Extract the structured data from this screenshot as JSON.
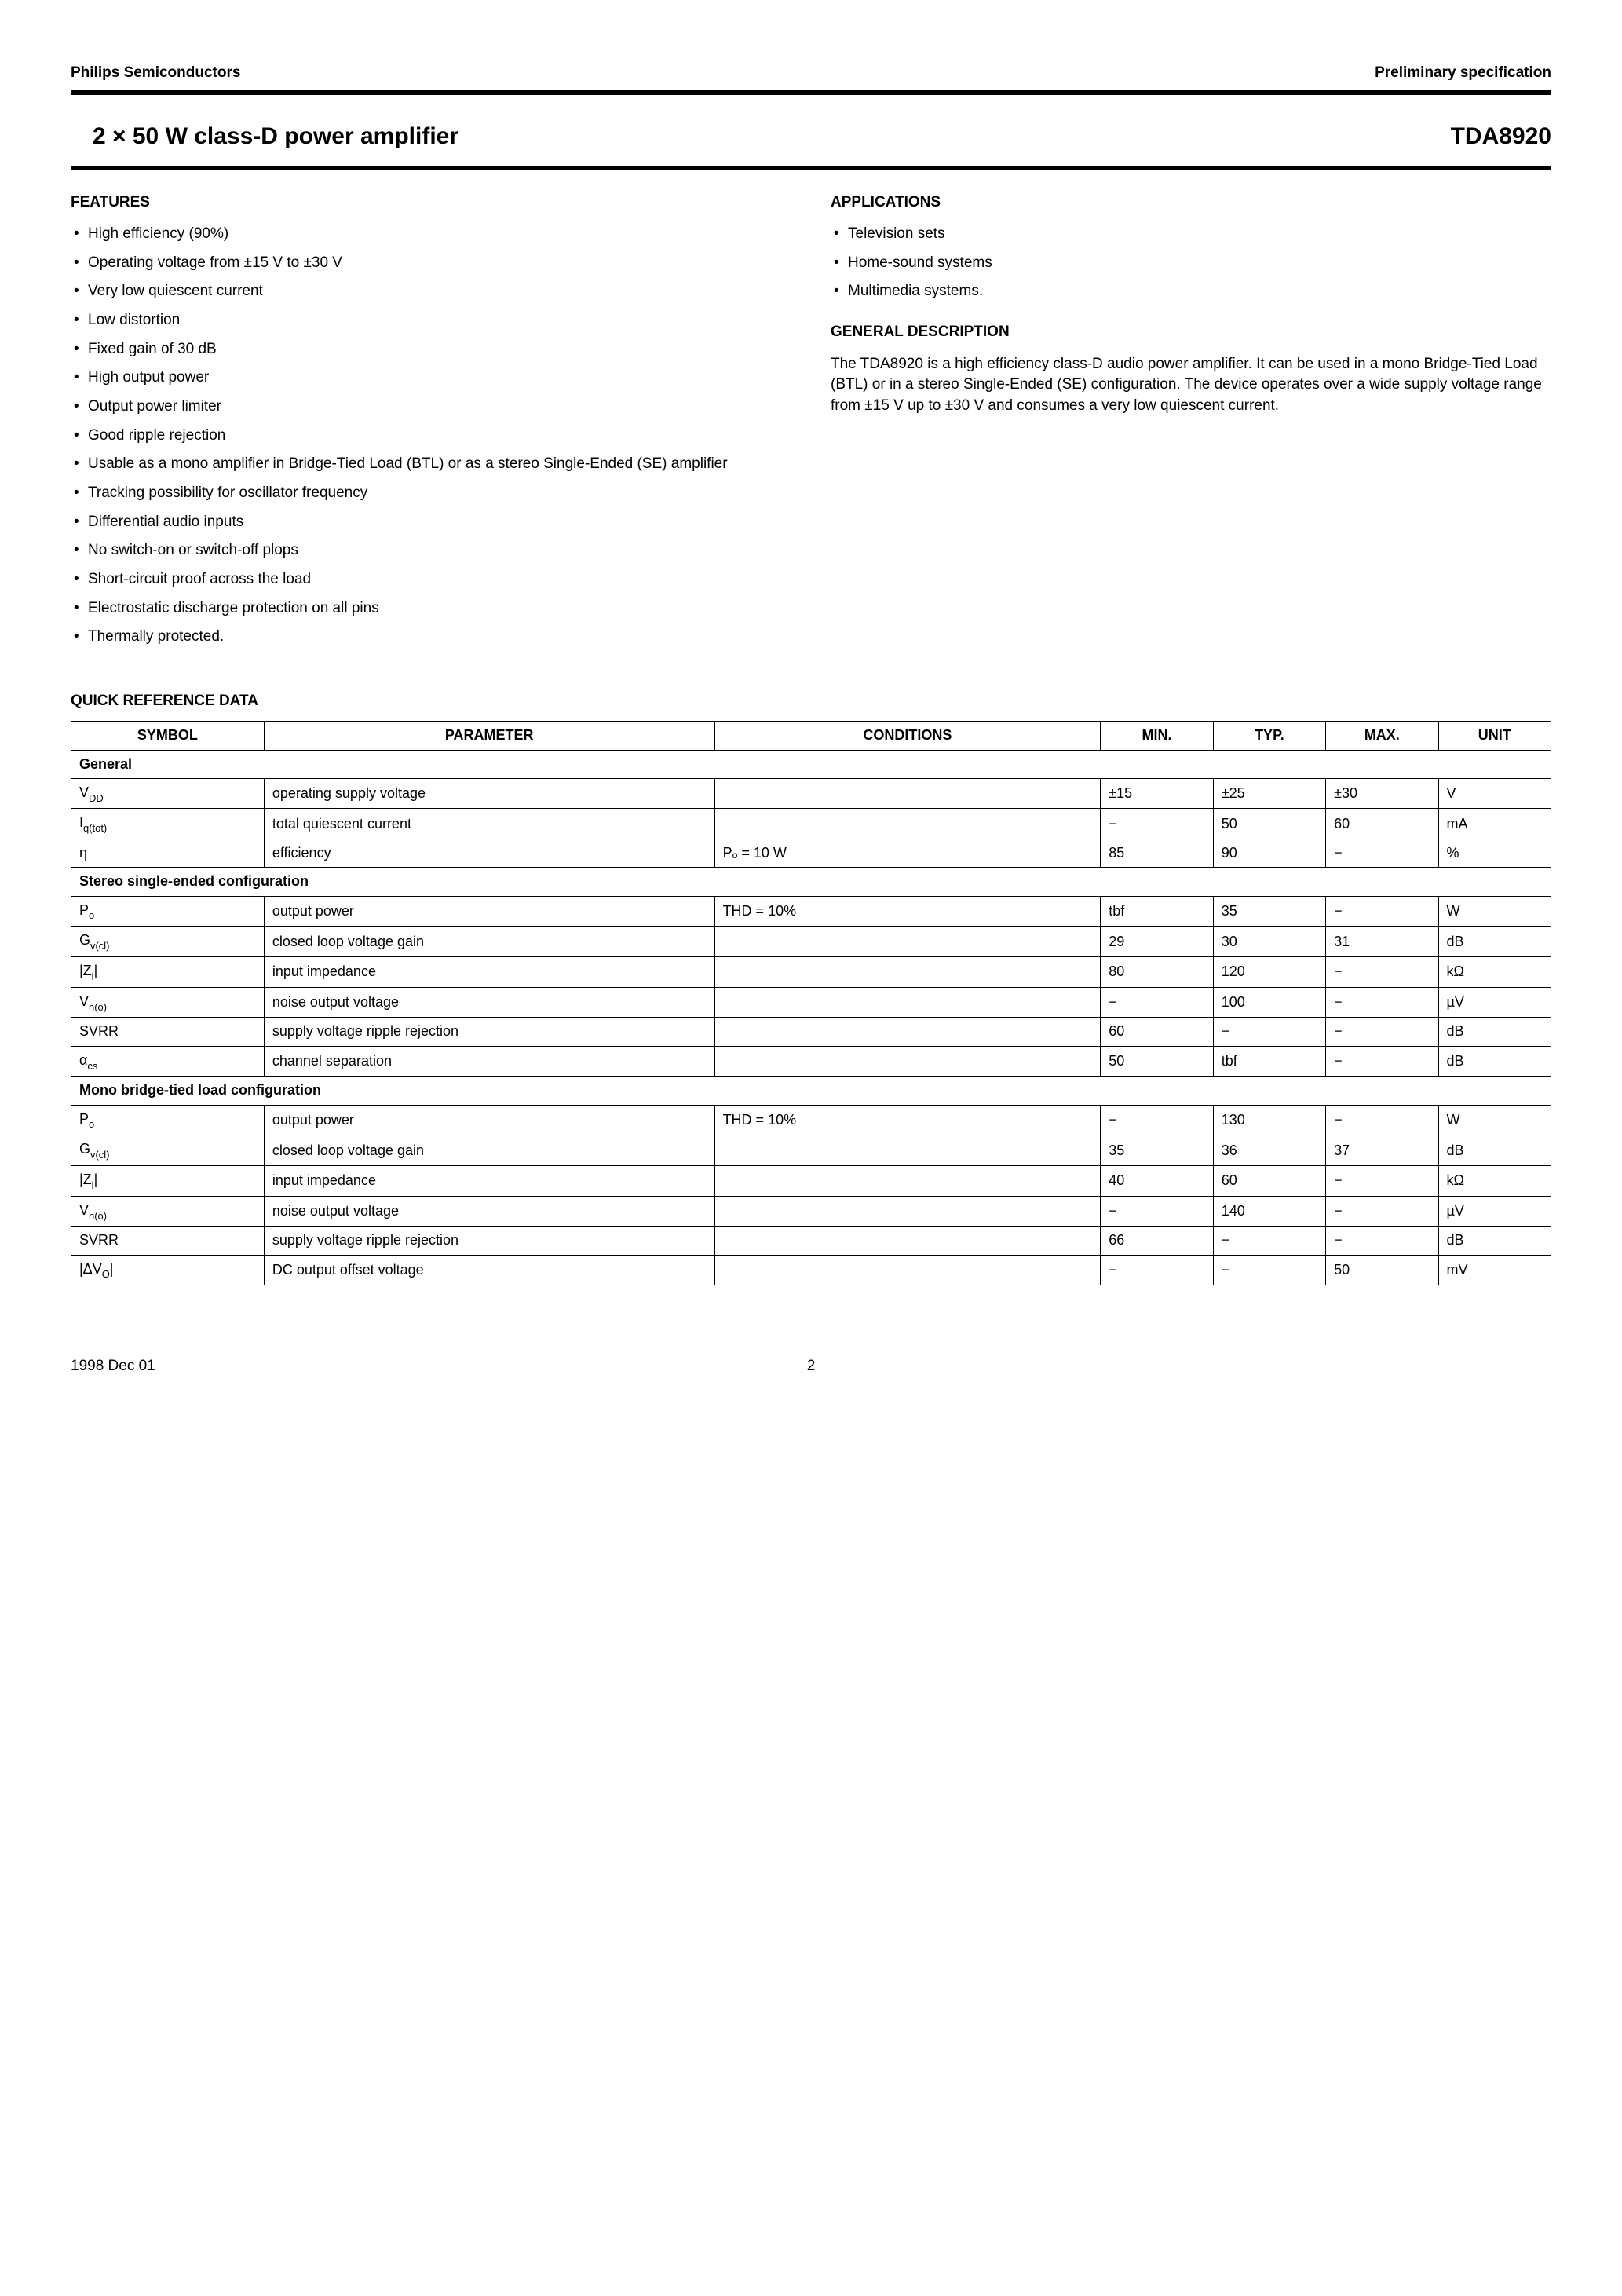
{
  "header": {
    "left": "Philips Semiconductors",
    "right": "Preliminary specification"
  },
  "title": {
    "left": "2 × 50 W class-D power amplifier",
    "right": "TDA8920"
  },
  "features": {
    "heading": "FEATURES",
    "items": [
      "High efficiency (90%)",
      "Operating voltage from ±15 V to ±30 V",
      "Very low quiescent current",
      "Low distortion",
      "Fixed gain of 30 dB",
      "High output power",
      "Output power limiter",
      "Good ripple rejection",
      "Usable as a mono amplifier in Bridge-Tied Load (BTL) or as a stereo Single-Ended (SE) amplifier",
      "Tracking possibility for oscillator frequency",
      "Differential audio inputs",
      "No switch-on or switch-off plops",
      "Short-circuit proof across the load",
      "Electrostatic discharge protection on all pins",
      "Thermally protected."
    ]
  },
  "applications": {
    "heading": "APPLICATIONS",
    "items": [
      "Television sets",
      "Home-sound systems",
      "Multimedia systems."
    ]
  },
  "general": {
    "heading": "GENERAL DESCRIPTION",
    "text": "The TDA8920 is a high efficiency class-D audio power amplifier. It can be used in a mono Bridge-Tied Load (BTL) or in a stereo Single-Ended (SE) configuration. The device operates over a wide supply voltage range from ±15 V up to ±30 V and consumes a very low quiescent current."
  },
  "qrd": {
    "heading": "QUICK REFERENCE DATA",
    "columns": [
      "SYMBOL",
      "PARAMETER",
      "CONDITIONS",
      "MIN.",
      "TYP.",
      "MAX.",
      "UNIT"
    ],
    "sections": [
      {
        "title": "General",
        "rows": [
          {
            "sym_html": "V<span class='sub'>DD</span>",
            "param": "operating supply voltage",
            "cond": "",
            "min": "±15",
            "typ": "±25",
            "max": "±30",
            "unit": "V"
          },
          {
            "sym_html": "I<span class='sub'>q(tot)</span>",
            "param": "total quiescent current",
            "cond": "",
            "min": "−",
            "typ": "50",
            "max": "60",
            "unit": "mA"
          },
          {
            "sym_html": "η",
            "param": "efficiency",
            "cond": "Pₒ = 10 W",
            "min": "85",
            "typ": "90",
            "max": "−",
            "unit": "%"
          }
        ]
      },
      {
        "title": "Stereo single-ended configuration",
        "rows": [
          {
            "sym_html": "P<span class='sub'>o</span>",
            "param": "output power",
            "cond": "THD = 10%",
            "min": "tbf",
            "typ": "35",
            "max": "−",
            "unit": "W"
          },
          {
            "sym_html": "G<span class='sub'>v(cl)</span>",
            "param": "closed loop voltage gain",
            "cond": "",
            "min": "29",
            "typ": "30",
            "max": "31",
            "unit": "dB"
          },
          {
            "sym_html": "|Z<span class='sub'>i</span>|",
            "param": "input impedance",
            "cond": "",
            "min": "80",
            "typ": "120",
            "max": "−",
            "unit": "kΩ"
          },
          {
            "sym_html": "V<span class='sub'>n(o)</span>",
            "param": "noise output voltage",
            "cond": "",
            "min": "−",
            "typ": "100",
            "max": "−",
            "unit": "µV"
          },
          {
            "sym_html": "SVRR",
            "param": "supply voltage ripple rejection",
            "cond": "",
            "min": "60",
            "typ": "−",
            "max": "−",
            "unit": "dB"
          },
          {
            "sym_html": "α<span class='sub'>cs</span>",
            "param": "channel separation",
            "cond": "",
            "min": "50",
            "typ": "tbf",
            "max": "−",
            "unit": "dB"
          }
        ]
      },
      {
        "title": "Mono bridge-tied load configuration",
        "rows": [
          {
            "sym_html": "P<span class='sub'>o</span>",
            "param": "output power",
            "cond": "THD = 10%",
            "min": "−",
            "typ": "130",
            "max": "−",
            "unit": "W"
          },
          {
            "sym_html": "G<span class='sub'>v(cl)</span>",
            "param": "closed loop voltage gain",
            "cond": "",
            "min": "35",
            "typ": "36",
            "max": "37",
            "unit": "dB"
          },
          {
            "sym_html": "|Z<span class='sub'>i</span>|",
            "param": "input impedance",
            "cond": "",
            "min": "40",
            "typ": "60",
            "max": "−",
            "unit": "kΩ"
          },
          {
            "sym_html": "V<span class='sub'>n(o)</span>",
            "param": "noise output voltage",
            "cond": "",
            "min": "−",
            "typ": "140",
            "max": "−",
            "unit": "µV"
          },
          {
            "sym_html": "SVRR",
            "param": "supply voltage ripple rejection",
            "cond": "",
            "min": "66",
            "typ": "−",
            "max": "−",
            "unit": "dB"
          },
          {
            "sym_html": "|ΔV<span class='sub'>O</span>|",
            "param": "DC output offset voltage",
            "cond": "",
            "min": "−",
            "typ": "−",
            "max": "50",
            "unit": "mV"
          }
        ]
      }
    ]
  },
  "footer": {
    "date": "1998 Dec 01",
    "page": "2"
  }
}
